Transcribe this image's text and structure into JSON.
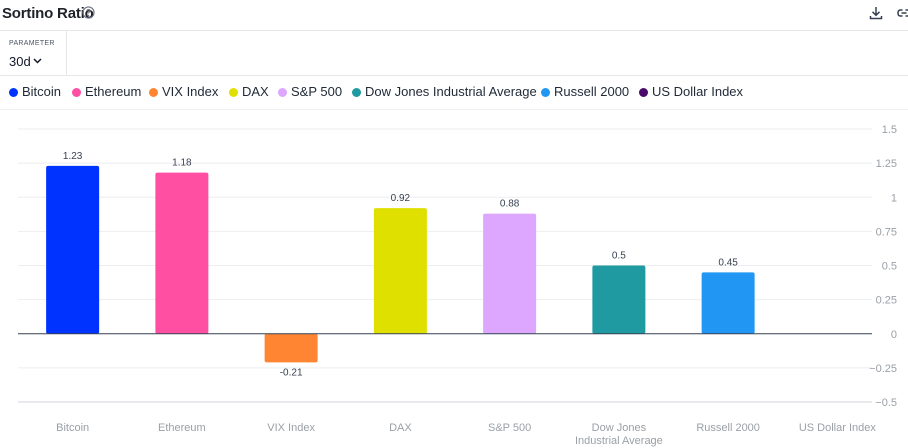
{
  "header": {
    "title": "Sortino Ratio",
    "icons": [
      "help-icon",
      "download-icon",
      "link-icon"
    ]
  },
  "parameter": {
    "label": "PARAMETER",
    "value": "30d"
  },
  "legend": [
    {
      "name": "Bitcoin",
      "color": "#0033ff"
    },
    {
      "name": "Ethereum",
      "color": "#ff4fa3"
    },
    {
      "name": "VIX Index",
      "color": "#ff8533"
    },
    {
      "name": "DAX",
      "color": "#dfe000"
    },
    {
      "name": "S&P 500",
      "color": "#dda6ff"
    },
    {
      "name": "Dow Jones Industrial Average",
      "color": "#1f9aa0"
    },
    {
      "name": "Russell 2000",
      "color": "#2196f3"
    },
    {
      "name": "US Dollar Index",
      "color": "#4b0a6b"
    }
  ],
  "chart_data": {
    "type": "bar",
    "title": "Sortino Ratio",
    "categories": [
      "Bitcoin",
      "Ethereum",
      "VIX Index",
      "DAX",
      "S&P 500",
      "Dow Jones Industrial Average",
      "Russell 2000",
      "US Dollar Index"
    ],
    "category_lines": [
      [
        "Bitcoin"
      ],
      [
        "Ethereum"
      ],
      [
        "VIX Index"
      ],
      [
        "DAX"
      ],
      [
        "S&P 500"
      ],
      [
        "Dow Jones",
        "Industrial Average"
      ],
      [
        "Russell 2000"
      ],
      [
        "US Dollar Index"
      ]
    ],
    "values": [
      1.23,
      1.18,
      -0.21,
      0.92,
      0.88,
      0.5,
      0.45,
      null
    ],
    "value_labels": [
      "1.23",
      "1.18",
      "-0.21",
      "0.92",
      "0.88",
      "0.5",
      "0.45",
      ""
    ],
    "colors": [
      "#0033ff",
      "#ff4fa3",
      "#ff8533",
      "#dfe000",
      "#dda6ff",
      "#1f9aa0",
      "#2196f3",
      "#4b0a6b"
    ],
    "ylim": [
      -0.5,
      1.5
    ],
    "yticks": [
      1.5,
      1.25,
      1,
      0.75,
      0.5,
      0.25,
      0,
      -0.25,
      -0.5
    ],
    "ytick_labels": [
      "1.5",
      "1.25",
      "1",
      "0.75",
      "0.5",
      "0.25",
      "0",
      "−0.25",
      "−0.5"
    ],
    "xlabel": "",
    "ylabel": "",
    "grid": true,
    "legend_position": "top"
  }
}
